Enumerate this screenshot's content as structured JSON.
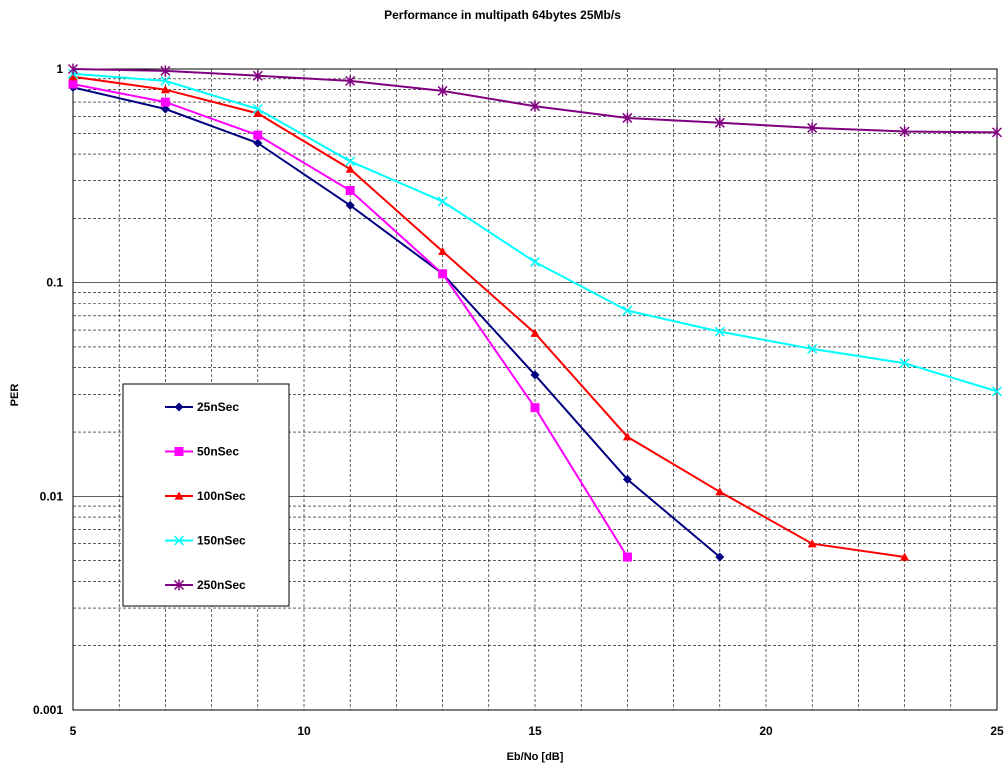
{
  "chart_data": {
    "type": "line",
    "title": "Performance in multipath 64bytes 25Mb/s",
    "xlabel": "Eb/No [dB]",
    "ylabel": "PER",
    "xlim": [
      5,
      25
    ],
    "ylim": [
      0.001,
      1
    ],
    "yscale": "log",
    "grid": true,
    "legend_position": "left",
    "x_ticks": [
      "5",
      "10",
      "15",
      "20",
      "25"
    ],
    "y_ticks": [
      "0.001",
      "0.01",
      "0.1",
      "1"
    ],
    "series": [
      {
        "name": "25nSec",
        "color": "#000080",
        "marker": "diamond",
        "x": [
          5,
          7,
          9,
          11,
          13,
          15,
          17,
          19
        ],
        "y": [
          0.82,
          0.65,
          0.45,
          0.23,
          0.11,
          0.037,
          0.012,
          0.0052
        ]
      },
      {
        "name": "50nSec",
        "color": "#FF00FF",
        "marker": "square",
        "x": [
          5,
          7,
          9,
          11,
          13,
          15,
          17
        ],
        "y": [
          0.85,
          0.7,
          0.49,
          0.27,
          0.11,
          0.026,
          0.0052
        ]
      },
      {
        "name": "100nSec",
        "color": "#FF0000",
        "marker": "triangle",
        "x": [
          5,
          7,
          9,
          11,
          13,
          15,
          17,
          19,
          21,
          23
        ],
        "y": [
          0.92,
          0.8,
          0.62,
          0.34,
          0.14,
          0.058,
          0.019,
          0.0105,
          0.006,
          0.0052
        ]
      },
      {
        "name": "150nSec",
        "color": "#00FFFF",
        "marker": "x",
        "x": [
          5,
          7,
          9,
          11,
          13,
          15,
          17,
          19,
          21,
          23,
          25
        ],
        "y": [
          0.95,
          0.88,
          0.65,
          0.37,
          0.24,
          0.125,
          0.074,
          0.059,
          0.049,
          0.042,
          0.031
        ]
      },
      {
        "name": "250nSec",
        "color": "#800080",
        "marker": "star",
        "x": [
          5,
          7,
          9,
          11,
          13,
          15,
          17,
          19,
          21,
          23,
          25
        ],
        "y": [
          1.0,
          0.98,
          0.93,
          0.88,
          0.79,
          0.67,
          0.59,
          0.56,
          0.53,
          0.51,
          0.505
        ]
      }
    ]
  }
}
